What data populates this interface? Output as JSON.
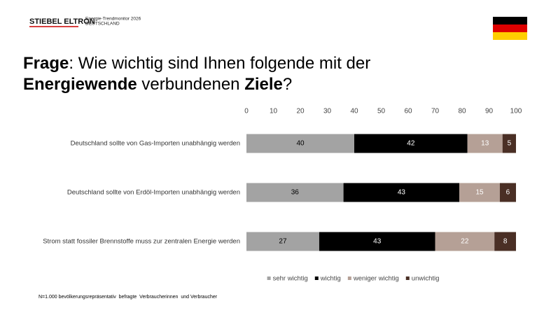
{
  "header": {
    "brand": "STIEBEL ELTRON",
    "subtitle_lines": [
      "Energie-Trendmonitor 2026",
      "DEUTSCHLAND"
    ]
  },
  "chart_data": {
    "type": "stacked-bar-horizontal",
    "title_lines": [
      [
        {
          "text": "Frage",
          "bold": true
        },
        {
          "text": ": Wie wichtig sind Ihnen folgende mit der",
          "bold": false
        }
      ],
      [
        {
          "text": "Energiewende",
          "bold": true
        },
        {
          "text": " verbundenen ",
          "bold": false
        },
        {
          "text": "Ziele",
          "bold": true
        },
        {
          "text": "?",
          "bold": false
        }
      ]
    ],
    "categories": [
      "Deutschland sollte von Gas-Importen unabhängig werden",
      "Deutschland sollte von Erdöl-Importen unabhängig werden",
      "Strom statt fossiler Brennstoffe muss zur zentralen Energie werden"
    ],
    "series": [
      {
        "name": "sehr wichtig",
        "color": "#a3a3a3",
        "label_color": "#000000",
        "values": [
          40,
          36,
          27
        ]
      },
      {
        "name": "wichtig",
        "color": "#000000",
        "label_color": "#ffffff",
        "values": [
          42,
          43,
          43
        ]
      },
      {
        "name": "weniger wichtig",
        "color": "#b5a096",
        "label_color": "#ffffff",
        "values": [
          13,
          15,
          22
        ]
      },
      {
        "name": "unwichtig",
        "color": "#4a2f25",
        "label_color": "#ffffff",
        "values": [
          5,
          6,
          8
        ]
      }
    ],
    "xlim": [
      0,
      100
    ],
    "xticks": [
      0,
      10,
      20,
      30,
      40,
      50,
      60,
      70,
      80,
      90,
      100
    ],
    "grid": false,
    "legend": "bottom"
  },
  "footnote": "N=1.000 bevölkerungsrepräsentativ  befragte  Verbraucherinnen  und Verbraucher"
}
